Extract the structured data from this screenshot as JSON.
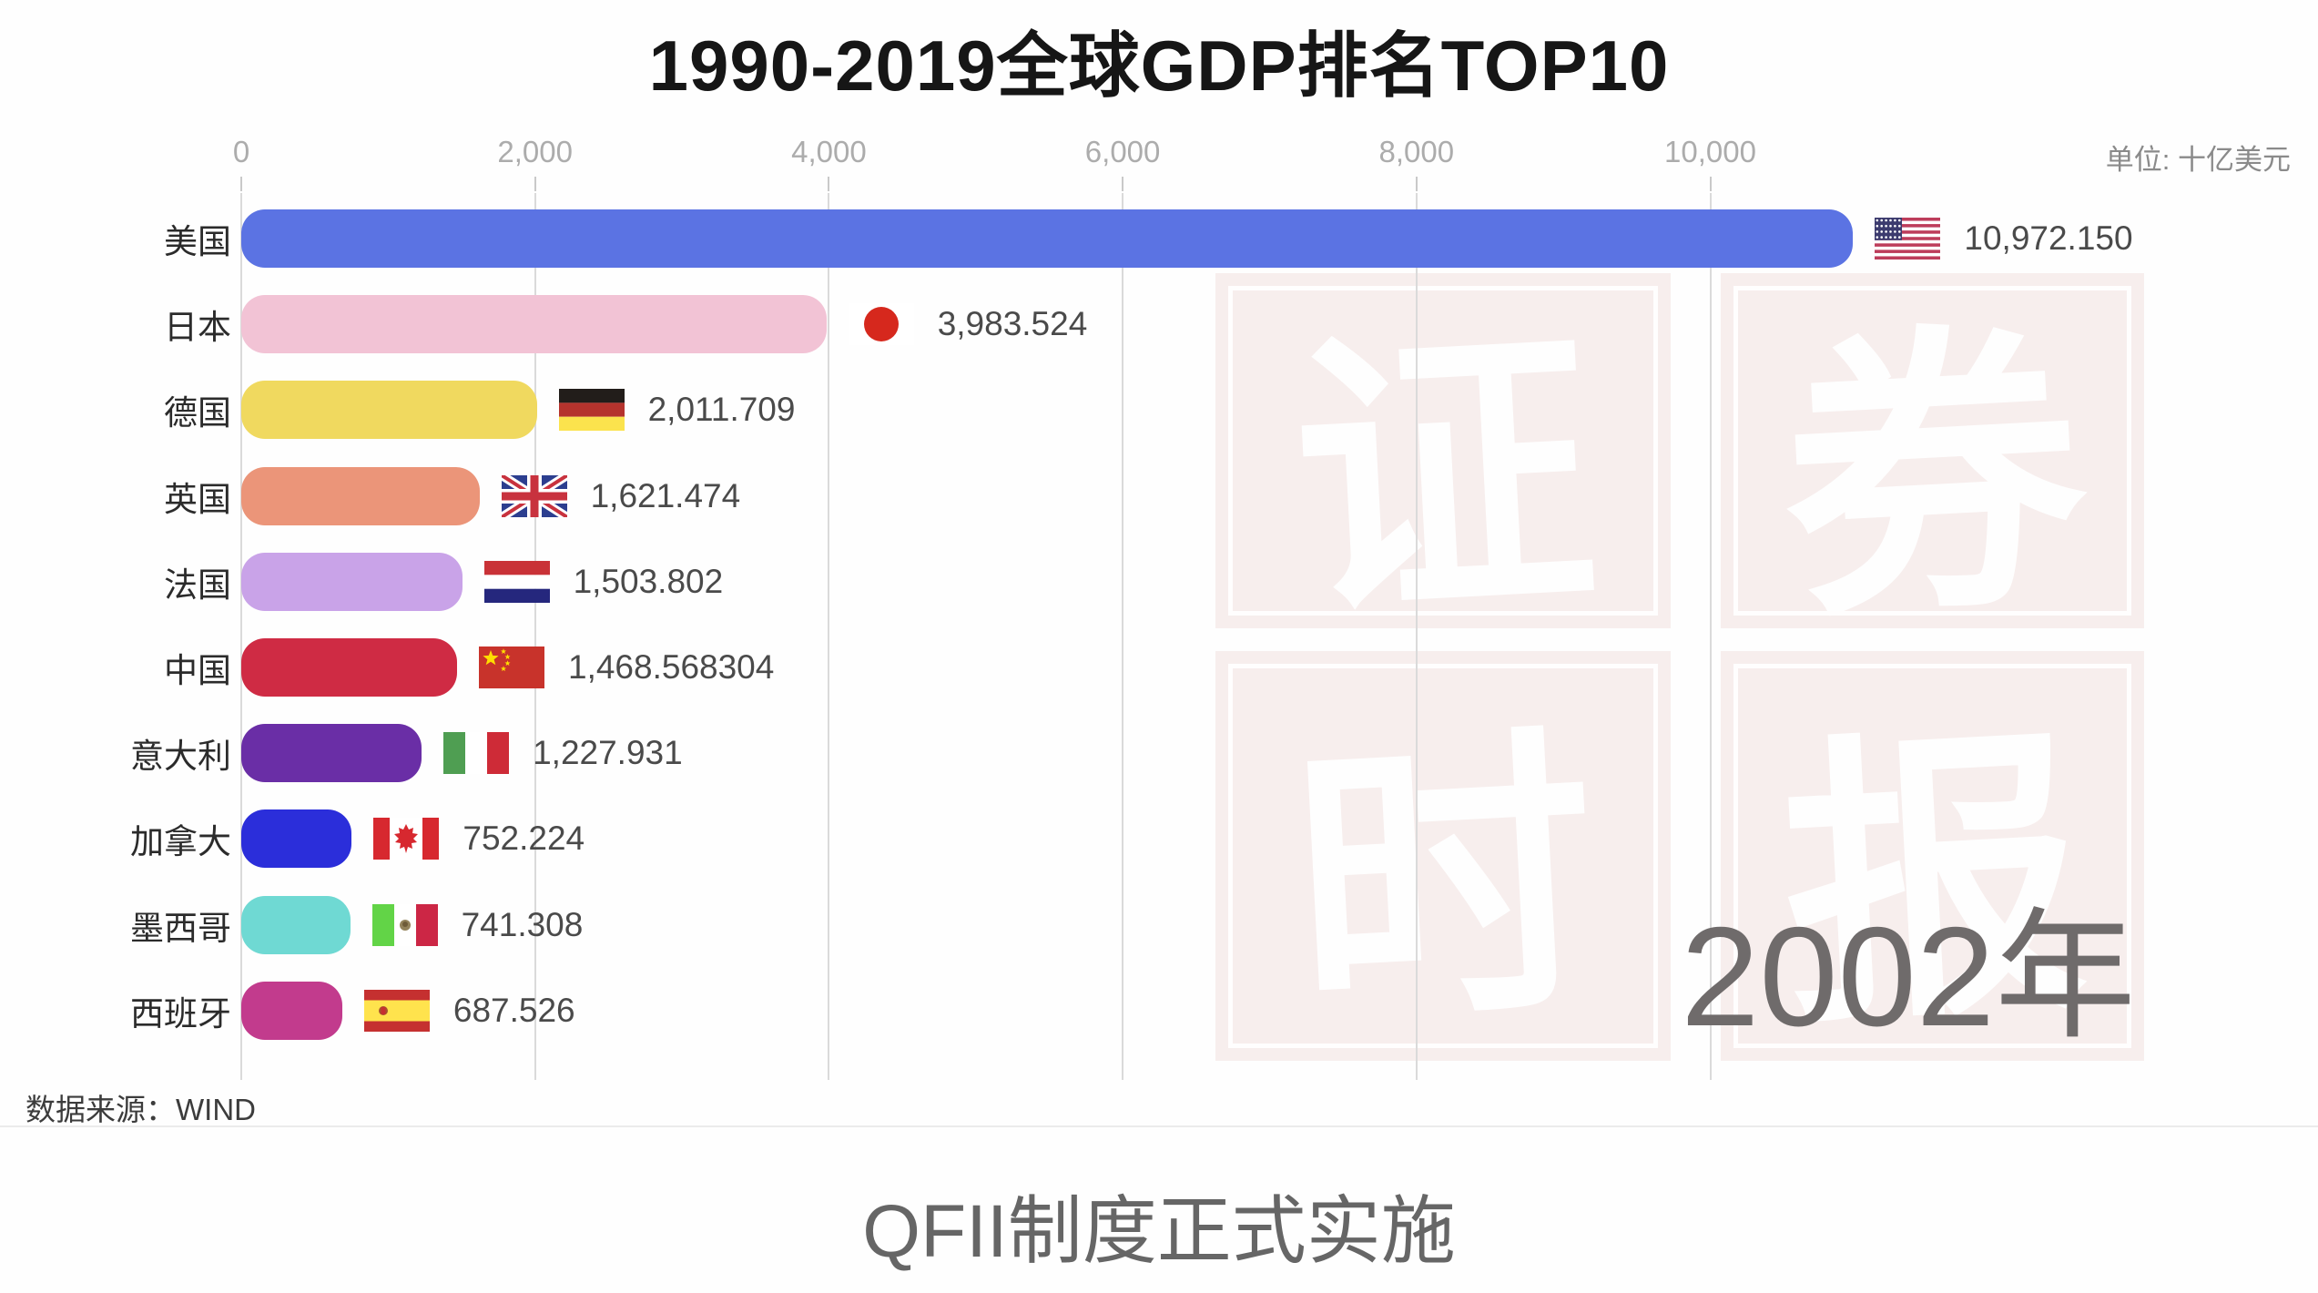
{
  "page": {
    "title": "1990-2019全球GDP排名TOP10",
    "unit_label": "单位: 十亿美元",
    "year_label": "2002年",
    "source_label": "数据来源：WIND",
    "caption": "QFII制度正式实施"
  },
  "axis": {
    "ticks": [
      {
        "label": "0",
        "value": 0
      },
      {
        "label": "2,000",
        "value": 2000
      },
      {
        "label": "4,000",
        "value": 4000
      },
      {
        "label": "6,000",
        "value": 6000
      },
      {
        "label": "8,000",
        "value": 8000
      },
      {
        "label": "10,000",
        "value": 10000
      }
    ]
  },
  "watermark": {
    "tile_bg": "#f7eeed",
    "ink": "#ffffff",
    "tiles": [
      {
        "char": "证",
        "name": "watermark-tile-zheng"
      },
      {
        "char": "券",
        "name": "watermark-tile-quan"
      },
      {
        "char": "时",
        "name": "watermark-tile-shi"
      },
      {
        "char": "报",
        "name": "watermark-tile-bao"
      }
    ]
  },
  "rows": [
    {
      "country": "美国",
      "flag": "us",
      "value": 10972.15,
      "value_label": "10,972.150",
      "color": "#5b73e3"
    },
    {
      "country": "日本",
      "flag": "jp",
      "value": 3983.524,
      "value_label": "3,983.524",
      "color": "#f2c3d5"
    },
    {
      "country": "德国",
      "flag": "de",
      "value": 2011.709,
      "value_label": "2,011.709",
      "color": "#f0d95f"
    },
    {
      "country": "英国",
      "flag": "gb",
      "value": 1621.474,
      "value_label": "1,621.474",
      "color": "#eb9579"
    },
    {
      "country": "法国",
      "flag": "fr",
      "value": 1503.802,
      "value_label": "1,503.802",
      "color": "#c9a3e8"
    },
    {
      "country": "中国",
      "flag": "cn",
      "value": 1468.568304,
      "value_label": "1,468.568304",
      "color": "#cf2b44"
    },
    {
      "country": "意大利",
      "flag": "it",
      "value": 1227.931,
      "value_label": "1,227.931",
      "color": "#6a2ea6"
    },
    {
      "country": "加拿大",
      "flag": "ca",
      "value": 752.224,
      "value_label": "752.224",
      "color": "#2b2eda"
    },
    {
      "country": "墨西哥",
      "flag": "mx",
      "value": 741.308,
      "value_label": "741.308",
      "color": "#6fd9d3"
    },
    {
      "country": "西班牙",
      "flag": "es",
      "value": 687.526,
      "value_label": "687.526",
      "color": "#c23b8d"
    }
  ],
  "chart_data": {
    "type": "bar",
    "orientation": "horizontal",
    "title": "1990-2019全球GDP排名TOP10",
    "unit": "单位: 十亿美元",
    "year": "2002年",
    "categories": [
      "美国",
      "日本",
      "德国",
      "英国",
      "法国",
      "中国",
      "意大利",
      "加拿大",
      "墨西哥",
      "西班牙"
    ],
    "values": [
      10972.15,
      3983.524,
      2011.709,
      1621.474,
      1503.802,
      1468.568304,
      1227.931,
      752.224,
      741.308,
      687.526
    ],
    "value_labels": [
      "10,972.150",
      "3,983.524",
      "2,011.709",
      "1,621.474",
      "1,503.802",
      "1,468.568304",
      "1,227.931",
      "752.224",
      "741.308",
      "687.526"
    ],
    "bar_colors": [
      "#5b73e3",
      "#f2c3d5",
      "#f0d95f",
      "#eb9579",
      "#c9a3e8",
      "#cf2b44",
      "#6a2ea6",
      "#2b2eda",
      "#6fd9d3",
      "#c23b8d"
    ],
    "x_ticks": [
      0,
      2000,
      4000,
      6000,
      8000,
      10000
    ],
    "xlim": [
      0,
      12000
    ],
    "grid": true,
    "legend": false,
    "source": "数据来源：WIND",
    "annotation": "QFII制度正式实施"
  }
}
